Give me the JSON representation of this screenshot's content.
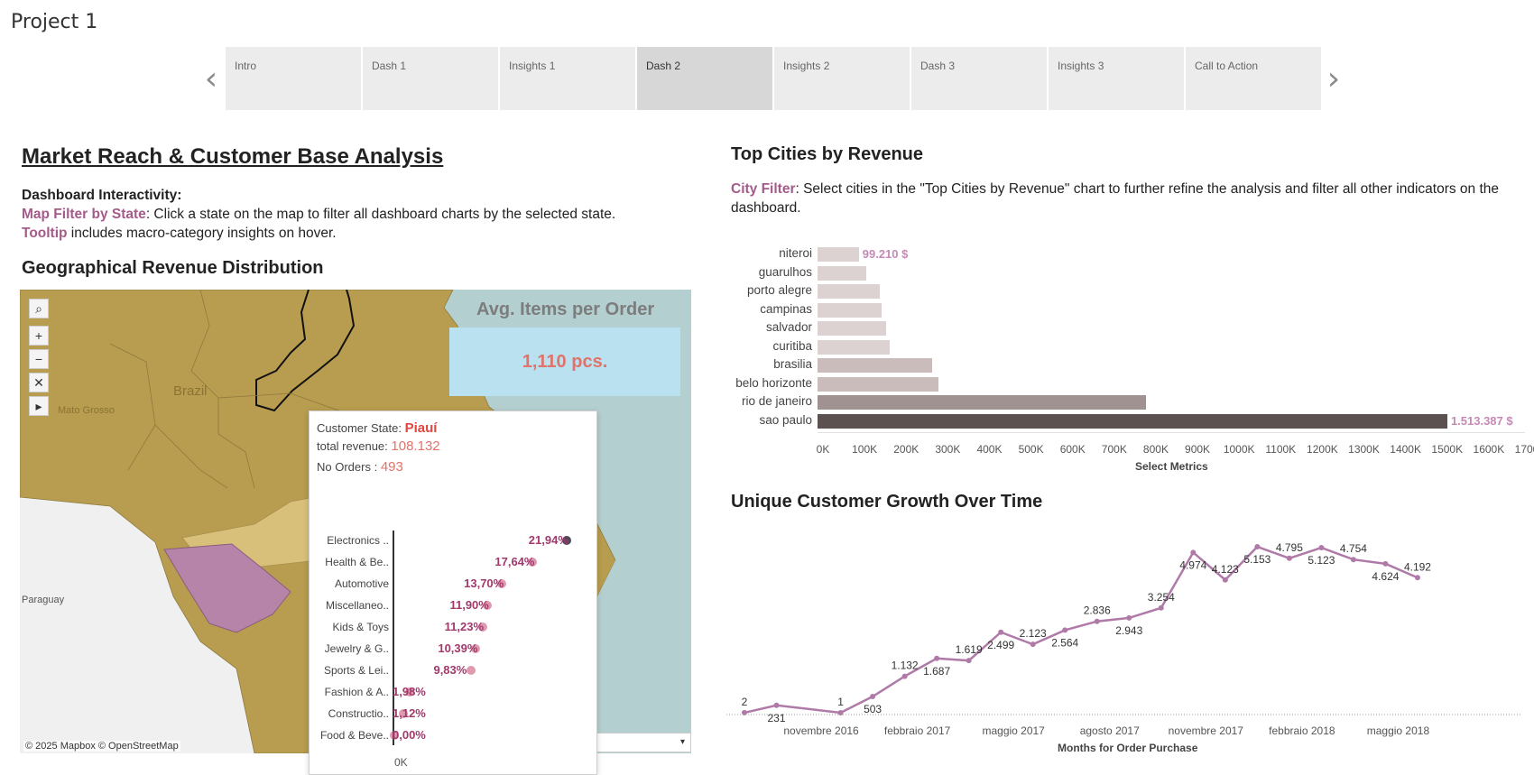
{
  "project_title": "Project 1",
  "nav": {
    "prev_icon": "chevron-left-icon",
    "next_icon": "chevron-right-icon",
    "tabs": [
      {
        "label": "Intro",
        "active": false
      },
      {
        "label": "Dash 1",
        "active": false
      },
      {
        "label": "Insights 1",
        "active": false
      },
      {
        "label": "Dash 2",
        "active": true
      },
      {
        "label": "Insights 2",
        "active": false
      },
      {
        "label": "Dash 3",
        "active": false
      },
      {
        "label": "Insights 3",
        "active": false
      },
      {
        "label": "Call to Action",
        "active": false
      }
    ]
  },
  "left": {
    "title": "Market Reach & Customer Base Analysis",
    "interactivity_heading": "Dashboard Interactivity:",
    "map_filter_label": "Map Filter by State",
    "map_filter_text": ": Click a state on the map to filter all dashboard charts by the selected state.",
    "tooltip_label": "Tooltip",
    "tooltip_text": " includes macro-category insights on hover.",
    "geo_title": "Geographical Revenue Distribution"
  },
  "map": {
    "labels": {
      "brazil": "Brazil",
      "mato_grosso": "Mato Grosso",
      "paraguay": "Paraguay"
    },
    "credit": "© 2025 Mapbox © OpenStreetMap",
    "tools": [
      {
        "name": "search-map-icon",
        "glyph": "⌕"
      },
      {
        "name": "zoom-in-icon",
        "glyph": "+"
      },
      {
        "name": "zoom-out-icon",
        "glyph": "−"
      },
      {
        "name": "pin-map-icon",
        "glyph": "✕"
      },
      {
        "name": "pan-arrow-icon",
        "glyph": "▸"
      }
    ],
    "dropdown_icon": "▾",
    "colors": {
      "water": "#b4cfcf",
      "land_dark": "#b89c4f",
      "land_light": "#d8c07a",
      "selected": "#b784a9",
      "neighbor": "#f0f0f0"
    }
  },
  "kpi": {
    "title": "Avg. Items per Order",
    "value": "1,110 pcs."
  },
  "tooltip": {
    "state_label": "Customer State:",
    "state_value": "Piauí",
    "revenue_label": "total revenue:",
    "revenue_value": "108.132",
    "orders_label": "No Orders :",
    "orders_value": "493",
    "axis_zero": "0K",
    "categories": [
      {
        "name": "Electronics ..",
        "pct": "21,94%",
        "value": 21.94
      },
      {
        "name": "Health & Be..",
        "pct": "17,64%",
        "value": 17.64
      },
      {
        "name": "Automotive",
        "pct": "13,70%",
        "value": 13.7
      },
      {
        "name": "Miscellaneo..",
        "pct": "11,90%",
        "value": 11.9
      },
      {
        "name": "Kids & Toys",
        "pct": "11,23%",
        "value": 11.23
      },
      {
        "name": "Jewelry & G..",
        "pct": "10,39%",
        "value": 10.39
      },
      {
        "name": "Sports & Lei..",
        "pct": "9,83%",
        "value": 9.83
      },
      {
        "name": "Fashion & A..",
        "pct": "1,98%",
        "value": 1.98
      },
      {
        "name": "Constructio..",
        "pct": "1,12%",
        "value": 1.12
      },
      {
        "name": "Food & Beve..",
        "pct": "0,00%",
        "value": 0.0
      }
    ]
  },
  "right": {
    "cities_title": "Top Cities by Revenue",
    "city_filter_label": "City Filter",
    "city_filter_text": ": Select cities in the \"Top Cities by Revenue\" chart to further refine the analysis and filter all other indicators on the dashboard.",
    "growth_title": "Unique Customer Growth Over Time"
  },
  "chart_data": [
    {
      "type": "bar",
      "title": "Top Cities by Revenue",
      "xlabel": "Select Metrics",
      "ylabel": "",
      "xlim": [
        0,
        1700000
      ],
      "ticks": [
        "0K",
        "100K",
        "200K",
        "300K",
        "400K",
        "500K",
        "600K",
        "700K",
        "800K",
        "900K",
        "1000K",
        "1100K",
        "1200K",
        "1300K",
        "1400K",
        "1500K",
        "1600K",
        "1700K"
      ],
      "categories": [
        "niteroi",
        "guarulhos",
        "porto alegre",
        "campinas",
        "salvador",
        "curitiba",
        "brasilia",
        "belo horizonte",
        "rio de janeiro",
        "sao paulo"
      ],
      "values": [
        99210,
        118000,
        150000,
        153000,
        165000,
        173000,
        275000,
        290000,
        790000,
        1513387
      ],
      "colors": [
        "#dcd2d2",
        "#dcd2d2",
        "#dcd2d2",
        "#dcd2d2",
        "#dcd2d2",
        "#dcd2d2",
        "#c9bcbb",
        "#c9bcbb",
        "#a09290",
        "#5a5150"
      ],
      "data_labels": [
        {
          "index": 0,
          "text": "99.210 $"
        },
        {
          "index": 9,
          "text": "1.513.387 $"
        }
      ]
    },
    {
      "type": "line",
      "title": "Unique Customer Growth Over Time",
      "xlabel": "Months for Order Purchase",
      "ylabel": "",
      "ylim": [
        0,
        5600
      ],
      "x": [
        "2016-09",
        "2016-10",
        "2016-11",
        "2016-12",
        "2017-01",
        "2017-02",
        "2017-03",
        "2017-04",
        "2017-05",
        "2017-06",
        "2017-07",
        "2017-08",
        "2017-09",
        "2017-10",
        "2017-11",
        "2017-12",
        "2018-01",
        "2018-02",
        "2018-03",
        "2018-04",
        "2018-05",
        "2018-06",
        "2018-07",
        "2018-08"
      ],
      "values": [
        2,
        231,
        null,
        1,
        503,
        1132,
        1687,
        1619,
        2499,
        2123,
        2564,
        2836,
        2943,
        3254,
        4974,
        4123,
        5153,
        4795,
        5123,
        4754,
        4624,
        4192,
        null,
        null
      ],
      "point_labels": [
        "2",
        "231",
        "",
        "1",
        "503",
        "1.132",
        "1.687",
        "1.619",
        "2.499",
        "2.123",
        "2.564",
        "2.836",
        "2.943",
        "3.254",
        "4.974",
        "4.123",
        "5.153",
        "4.795",
        "5.123",
        "4.754",
        "4.624",
        "4.192",
        "",
        ""
      ],
      "tick_labels": [
        {
          "index": 2,
          "text": "novembre 2016"
        },
        {
          "index": 5,
          "text": "febbraio 2017"
        },
        {
          "index": 8,
          "text": "maggio 2017"
        },
        {
          "index": 11,
          "text": "agosto 2017"
        },
        {
          "index": 14,
          "text": "novembre 2017"
        },
        {
          "index": 17,
          "text": "febbraio 2018"
        },
        {
          "index": 20,
          "text": "maggio 2018"
        }
      ],
      "color": "#b07aa8"
    }
  ]
}
